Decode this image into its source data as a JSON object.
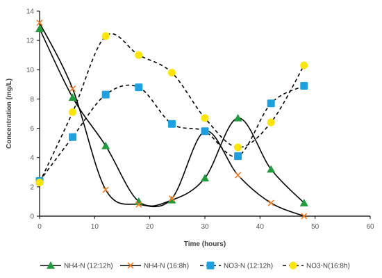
{
  "chart_data": {
    "type": "scatter",
    "title": "",
    "xlabel": "Time (hours)",
    "ylabel": "Concentration (mg/L)",
    "xlim": [
      0,
      60
    ],
    "ylim": [
      0,
      14
    ],
    "x_ticks": [
      0,
      10,
      20,
      30,
      40,
      50,
      60
    ],
    "y_ticks": [
      0,
      2,
      4,
      6,
      8,
      10,
      12,
      14
    ],
    "grid": false,
    "legend_position": "bottom",
    "series": [
      {
        "name": "NH4-N (12:12h)",
        "marker": "triangle",
        "color": "#1E9E3A",
        "line": "solid",
        "line_color": "#000000",
        "x": [
          0,
          6,
          12,
          18,
          24,
          30,
          36,
          42,
          48
        ],
        "y": [
          12.8,
          8.1,
          4.8,
          1.0,
          1.1,
          2.6,
          6.7,
          3.2,
          0.9
        ]
      },
      {
        "name": "NH4-N (16:8h)",
        "marker": "x",
        "color": "#F47B20",
        "line": "solid",
        "line_color": "#000000",
        "x": [
          0,
          6,
          12,
          18,
          24,
          30,
          36,
          42,
          48
        ],
        "y": [
          13.2,
          8.7,
          1.8,
          0.8,
          1.2,
          5.8,
          2.8,
          0.9,
          0.0
        ]
      },
      {
        "name": "NO3-N (12:12h)",
        "marker": "square",
        "color": "#1BA1E2",
        "line": "dashed",
        "line_color": "#000000",
        "x": [
          0,
          6,
          12,
          18,
          24,
          30,
          36,
          42,
          48
        ],
        "y": [
          2.4,
          5.4,
          8.3,
          8.8,
          6.3,
          5.8,
          4.1,
          7.7,
          8.9
        ]
      },
      {
        "name": "NO3-N(16:8h)",
        "marker": "circle",
        "color": "#FFE600",
        "line": "dashed",
        "line_color": "#000000",
        "x": [
          0,
          6,
          12,
          18,
          24,
          30,
          36,
          42,
          48
        ],
        "y": [
          2.3,
          7.1,
          12.3,
          11.0,
          9.8,
          6.7,
          4.7,
          6.4,
          10.3
        ]
      }
    ]
  }
}
